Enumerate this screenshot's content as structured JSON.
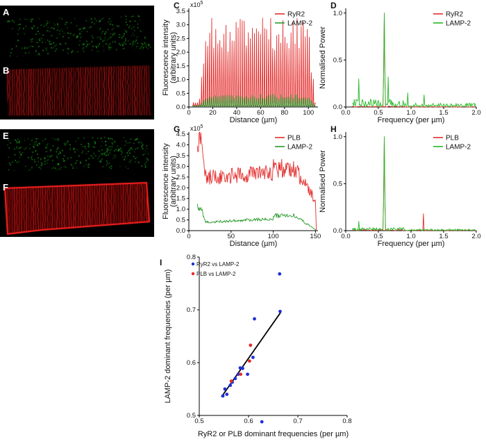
{
  "image_panels": [
    {
      "letter": "A",
      "channel": "LAMP-2",
      "color": "#22dd22",
      "pattern": "punctate"
    },
    {
      "letter": "B",
      "channel": "RyR2",
      "color": "#ee2222",
      "pattern": "striated"
    },
    {
      "letter": "E",
      "channel": "LAMP-2",
      "color": "#22dd22",
      "pattern": "punctate"
    },
    {
      "letter": "F",
      "channel": "PLB",
      "color": "#ee2222",
      "pattern": "striated"
    }
  ],
  "chart_data": [
    {
      "id": "C",
      "letter": "C",
      "type": "line",
      "title": "",
      "xlabel": "Distance (µm)",
      "ylabel": "Fluorescence intensity",
      "ylabel2": "(arbitrary units)",
      "multiplier": "x10",
      "multiplier_exp": "5",
      "xlim": [
        0,
        108
      ],
      "ylim": [
        0,
        3.6
      ],
      "xticks": [
        0,
        20,
        40,
        60,
        80,
        100
      ],
      "xtick_labels": [
        "0",
        "20",
        "40",
        "60",
        "80",
        "100"
      ],
      "yticks": [
        0,
        0.5,
        1,
        1.5,
        2,
        2.5,
        3,
        3.5
      ],
      "ytick_labels": [
        "0.0",
        "0.5",
        "1.0",
        "1.5",
        "2.0",
        "2.5",
        "3.0",
        "3.5"
      ],
      "legend": "top-right",
      "series": [
        {
          "name": "RyR2",
          "color": "#e32b2b",
          "kind": "periodic",
          "x_range": [
            3,
            106
          ],
          "period": 1.7,
          "peak": 2.6,
          "base": 0.05,
          "ramp_in": [
            8,
            16
          ],
          "ramp_out": [
            100,
            106
          ]
        },
        {
          "name": "LAMP-2",
          "color": "#2b9a2b",
          "kind": "periodic",
          "x_range": [
            3,
            106
          ],
          "period": 1.7,
          "peak": 0.35,
          "base": 0.03,
          "ramp_in": [
            8,
            16
          ],
          "ramp_out": [
            100,
            106
          ]
        }
      ]
    },
    {
      "id": "D",
      "letter": "D",
      "type": "line",
      "title": "",
      "xlabel": "Frequency (per µm)",
      "ylabel": "Normalised Power",
      "xlim": [
        0,
        2.0
      ],
      "ylim": [
        0,
        1.05
      ],
      "xticks": [
        0,
        0.5,
        1.0,
        1.5,
        2.0
      ],
      "xtick_labels": [
        "0.0",
        "0.5",
        "1.0",
        "1.5",
        "2.0"
      ],
      "yticks": [
        0,
        0.5,
        1.0
      ],
      "ytick_labels": [
        "0.0",
        "0.5",
        "1.0"
      ],
      "legend": "top-right",
      "series": [
        {
          "name": "RyR2",
          "color": "#e32b2b",
          "kind": "spectrum",
          "x_range": [
            0.1,
            2.0
          ],
          "peak_x": 0.59,
          "peak_y": 1.0,
          "noise": 0.012
        },
        {
          "name": "LAMP-2",
          "color": "#22b922",
          "kind": "spectrum",
          "x_range": [
            0.1,
            2.0
          ],
          "peak_x": 0.59,
          "peak_y": 1.0,
          "noise": 0.12,
          "secondary": [
            [
              0.2,
              0.3
            ],
            [
              0.65,
              0.32
            ],
            [
              0.95,
              0.15
            ],
            [
              1.2,
              0.13
            ]
          ]
        }
      ]
    },
    {
      "id": "G",
      "letter": "G",
      "type": "line",
      "title": "",
      "xlabel": "Distance (µm)",
      "ylabel": "Fluorescence intensity",
      "ylabel2": "(arbitrary units)",
      "multiplier": "x10",
      "multiplier_exp": "5",
      "xlim": [
        0,
        153
      ],
      "ylim": [
        0,
        4.6
      ],
      "xticks": [
        0,
        50,
        100,
        150
      ],
      "xtick_labels": [
        "0",
        "50",
        "100",
        "150"
      ],
      "yticks": [
        0,
        0.5,
        1,
        1.5,
        2,
        2.5,
        3,
        3.5,
        4,
        4.5
      ],
      "ytick_labels": [
        "0.0",
        "0.5",
        "1.0",
        "1.5",
        "2.0",
        "2.5",
        "3.0",
        "3.5",
        "4.0",
        "4.5"
      ],
      "legend": "top-right",
      "series": [
        {
          "name": "PLB",
          "color": "#e32b2b",
          "kind": "plateau",
          "x_range": [
            10,
            150
          ],
          "level": 2.5,
          "start_peak": 4.3,
          "rise_to": 2.9,
          "rise_x": 100,
          "drop_start": 125,
          "end_level": 1.4
        },
        {
          "name": "LAMP-2",
          "color": "#2b9a2b",
          "kind": "plateau",
          "x_range": [
            10,
            150
          ],
          "level": 0.4,
          "start_peak": 1.1,
          "rise_to": 0.7,
          "rise_x": 100,
          "drop_start": 125,
          "end_level": 0.05
        }
      ]
    },
    {
      "id": "H",
      "letter": "H",
      "type": "line",
      "title": "",
      "xlabel": "Frequency (per µm)",
      "ylabel": "Normalised Power",
      "xlim": [
        0,
        2.0
      ],
      "ylim": [
        0,
        1.05
      ],
      "xticks": [
        0,
        0.5,
        1.0,
        1.5,
        2.0
      ],
      "xtick_labels": [
        "0.0",
        "0.5",
        "1.0",
        "1.5",
        "2.0"
      ],
      "yticks": [
        0,
        0.5,
        1.0
      ],
      "ytick_labels": [
        "0.0",
        "0.5",
        "1.0"
      ],
      "legend": "top-right",
      "series": [
        {
          "name": "PLB",
          "color": "#e32b2b",
          "kind": "spectrum",
          "x_range": [
            0.1,
            2.0
          ],
          "peak_x": 0.59,
          "peak_y": 1.0,
          "noise": 0.02,
          "secondary": [
            [
              1.19,
              0.18
            ]
          ]
        },
        {
          "name": "LAMP-2",
          "color": "#22b922",
          "kind": "spectrum",
          "x_range": [
            0.1,
            2.0
          ],
          "peak_x": 0.59,
          "peak_y": 1.0,
          "noise": 0.05,
          "secondary": [
            [
              0.2,
              0.1
            ]
          ]
        }
      ]
    },
    {
      "id": "I",
      "letter": "I",
      "type": "scatter",
      "title": "",
      "xlabel": "RyR2 or PLB dominant frequencies (per µm)",
      "ylabel": "LAMP-2 dominant frequencies (per µm)",
      "xlim": [
        0.5,
        0.8
      ],
      "ylim": [
        0.5,
        0.8
      ],
      "xticks": [
        0.5,
        0.6,
        0.7,
        0.8
      ],
      "xtick_labels": [
        "0.5",
        "0.6",
        "0.7",
        "0.8"
      ],
      "yticks": [
        0.5,
        0.6,
        0.7,
        0.8
      ],
      "ytick_labels": [
        "0.5",
        "0.6",
        "0.7",
        "0.8"
      ],
      "legend": "top-left",
      "fit_line": {
        "x": [
          0.545,
          0.665
        ],
        "y": [
          0.535,
          0.695
        ]
      },
      "series": [
        {
          "name": "RyR2 vs LAMP-2",
          "color": "#1f2fd6",
          "x": [
            0.548,
            0.552,
            0.556,
            0.563,
            0.567,
            0.573,
            0.579,
            0.583,
            0.588,
            0.598,
            0.609,
            0.612,
            0.627,
            0.663,
            0.664
          ],
          "y": [
            0.537,
            0.55,
            0.54,
            0.557,
            0.563,
            0.57,
            0.578,
            0.59,
            0.589,
            0.578,
            0.61,
            0.683,
            0.488,
            0.768,
            0.697
          ]
        },
        {
          "name": "PLB vs LAMP-2",
          "color": "#e32b2b",
          "x": [
            0.565,
            0.584,
            0.602,
            0.604
          ],
          "y": [
            0.565,
            0.578,
            0.603,
            0.633
          ]
        }
      ]
    }
  ]
}
